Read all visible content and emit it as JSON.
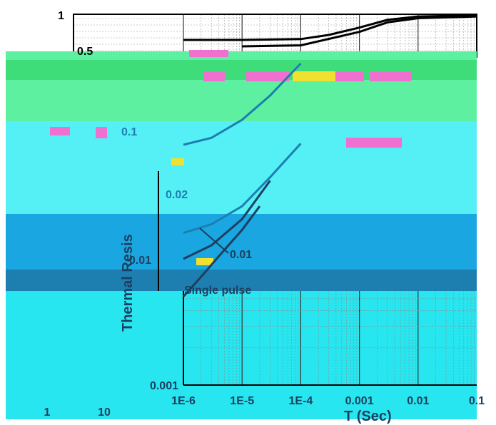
{
  "colors": {
    "background": "#ffffff",
    "grid": "#9a9a9a",
    "frame": "#000000",
    "curve": "#000000",
    "text": "#000000",
    "band_green": "#5cf0a0",
    "band_green_dark": "#3fdc7a",
    "band_cyan": "#55f0f6",
    "band_blue": "#1aa6e0",
    "band_blue_dark": "#1d7fb0",
    "band_cyan_low": "#28e6f0",
    "glitch_pink": "#f070d0",
    "glitch_yellow": "#f0e030"
  },
  "chart_data": {
    "type": "line",
    "title": "",
    "xlabel": "T (Sec)",
    "ylabel": "Thermal Resis",
    "x_scale": "log",
    "y_scale": "log",
    "xlim": [
      1e-06,
      0.1
    ],
    "ylim": [
      0.001,
      1
    ],
    "x_ticks": [
      "1E-6",
      "1E-5",
      "1E-4",
      "0.001",
      "0.01",
      "0.1"
    ],
    "x_tick_values": [
      1e-06,
      1e-05,
      0.0001,
      0.001,
      0.01,
      0.1
    ],
    "extra_x_ticks": [
      "1",
      "10"
    ],
    "y_ticks": [
      "1",
      "0.5",
      "0.1",
      "0.02",
      "0.01",
      "0.001"
    ],
    "y_tick_values": [
      1,
      0.5,
      0.1,
      0.02,
      0.01,
      0.001
    ],
    "grid": true,
    "curve_labels": [
      "0.5",
      "0.1",
      "0.02",
      "0.01",
      "Single pulse"
    ],
    "series": [
      {
        "x": [
          1e-06,
          1e-05,
          0.0001,
          0.0003,
          0.001,
          0.003,
          0.01,
          0.1
        ],
        "values": [
          0.62,
          0.62,
          0.63,
          0.68,
          0.78,
          0.9,
          0.96,
          0.98
        ]
      },
      {
        "x": [
          1e-05,
          0.0001,
          0.001,
          0.003,
          0.01,
          0.1
        ],
        "values": [
          0.55,
          0.56,
          0.72,
          0.86,
          0.93,
          0.96
        ]
      },
      {
        "x": [
          1e-06,
          3e-06,
          1e-05,
          3e-05,
          0.0001
        ],
        "values": [
          0.088,
          0.1,
          0.14,
          0.22,
          0.4
        ]
      },
      {
        "x": [
          1e-06,
          3e-06,
          1e-05,
          3e-05,
          0.0001
        ],
        "values": [
          0.017,
          0.02,
          0.028,
          0.048,
          0.09
        ]
      },
      {
        "x": [
          1e-06,
          3e-06,
          1e-05,
          3e-05
        ],
        "values": [
          0.0105,
          0.0135,
          0.022,
          0.045
        ]
      },
      {
        "x": [
          1e-06,
          2e-06,
          4e-06,
          1e-05,
          2e-05
        ],
        "values": [
          0.0052,
          0.0075,
          0.011,
          0.018,
          0.028
        ]
      }
    ]
  }
}
